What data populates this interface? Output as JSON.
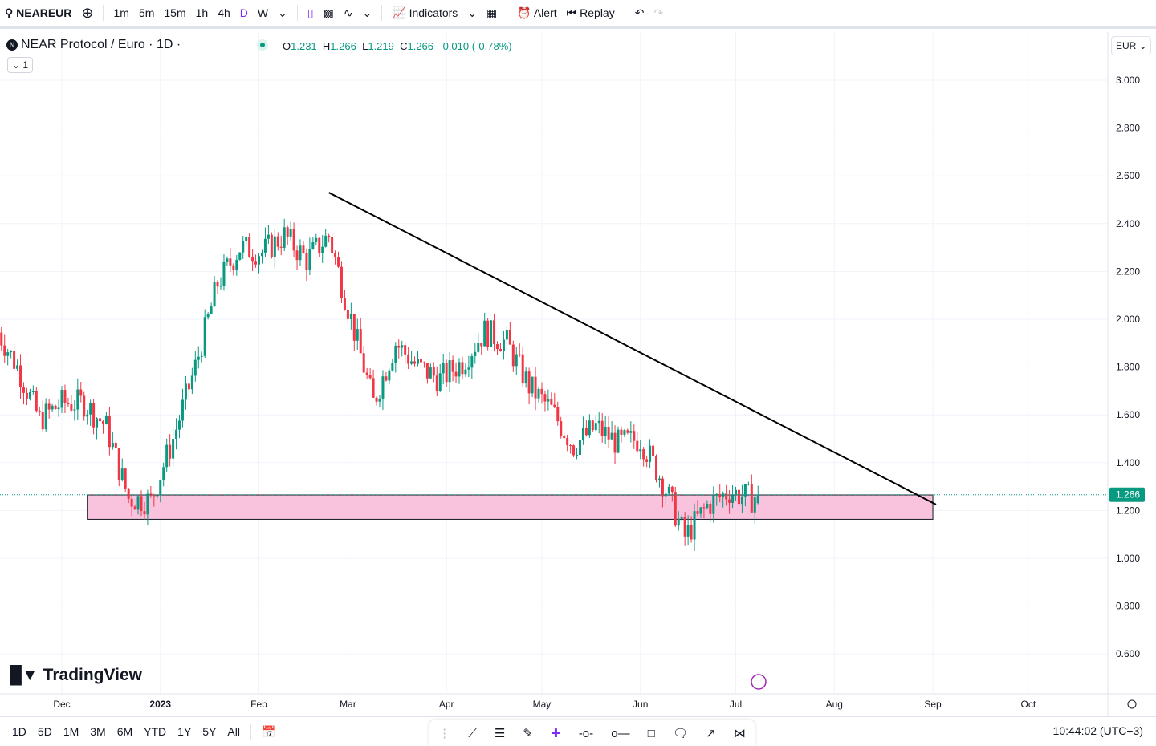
{
  "toolbar": {
    "symbol": "NEAREUR",
    "intervals": [
      "1m",
      "5m",
      "15m",
      "1h",
      "4h",
      "D",
      "W"
    ],
    "active_interval": "D",
    "indicators": "Indicators",
    "alert": "Alert",
    "replay": "Replay"
  },
  "legend": {
    "title": "NEAR Protocol / Euro · 1D ·",
    "o_label": "O",
    "o": "1.231",
    "h_label": "H",
    "h": "1.266",
    "l_label": "L",
    "l": "1.219",
    "c_label": "C",
    "c": "1.266",
    "change": "-0.010 (-0.78%)",
    "collapse": "1"
  },
  "currency": "EUR",
  "brand": "TradingView",
  "colors": {
    "up": "#089981",
    "down": "#f23645",
    "accent": "#2962ff",
    "zone": "#f8bbd9",
    "active": "#7b2cf5"
  },
  "chart_data": {
    "type": "candlestick",
    "ylim": [
      0.5,
      3.2
    ],
    "y_ticks": [
      "3.000",
      "2.800",
      "2.600",
      "2.400",
      "2.200",
      "2.000",
      "1.800",
      "1.600",
      "1.400",
      "1.200",
      "1.000",
      "0.800",
      "0.600"
    ],
    "x_ticks": [
      {
        "label": "Dec",
        "date": "2022-12-01"
      },
      {
        "label": "2023",
        "date": "2023-01-01"
      },
      {
        "label": "Feb",
        "date": "2023-02-01"
      },
      {
        "label": "Mar",
        "date": "2023-03-01"
      },
      {
        "label": "Apr",
        "date": "2023-04-01"
      },
      {
        "label": "May",
        "date": "2023-05-01"
      },
      {
        "label": "Jun",
        "date": "2023-06-01"
      },
      {
        "label": "Jul",
        "date": "2023-07-01"
      },
      {
        "label": "Aug",
        "date": "2023-08-01"
      },
      {
        "label": "Sep",
        "date": "2023-09-01"
      },
      {
        "label": "Oct",
        "date": "2023-10-01"
      }
    ],
    "closes": [
      [
        "2022-11-10",
        1.97
      ],
      [
        "2022-11-17",
        1.8
      ],
      [
        "2022-11-24",
        1.58
      ],
      [
        "2022-12-01",
        1.65
      ],
      [
        "2022-12-08",
        1.65
      ],
      [
        "2022-12-15",
        1.55
      ],
      [
        "2022-12-22",
        1.25
      ],
      [
        "2022-12-29",
        1.24
      ],
      [
        "2023-01-05",
        1.5
      ],
      [
        "2023-01-12",
        1.8
      ],
      [
        "2023-01-19",
        2.15
      ],
      [
        "2023-01-26",
        2.3
      ],
      [
        "2023-02-02",
        2.28
      ],
      [
        "2023-02-09",
        2.35
      ],
      [
        "2023-02-16",
        2.25
      ],
      [
        "2023-02-23",
        2.35
      ],
      [
        "2023-03-02",
        2.0
      ],
      [
        "2023-03-09",
        1.65
      ],
      [
        "2023-03-16",
        1.9
      ],
      [
        "2023-03-23",
        1.8
      ],
      [
        "2023-03-30",
        1.75
      ],
      [
        "2023-04-06",
        1.82
      ],
      [
        "2023-04-13",
        1.95
      ],
      [
        "2023-04-20",
        1.9
      ],
      [
        "2023-04-27",
        1.72
      ],
      [
        "2023-05-04",
        1.62
      ],
      [
        "2023-05-11",
        1.47
      ],
      [
        "2023-05-18",
        1.55
      ],
      [
        "2023-05-25",
        1.48
      ],
      [
        "2023-06-01",
        1.5
      ],
      [
        "2023-06-08",
        1.32
      ],
      [
        "2023-06-15",
        1.09
      ],
      [
        "2023-06-22",
        1.22
      ],
      [
        "2023-06-29",
        1.28
      ],
      [
        "2023-07-06",
        1.25
      ],
      [
        "2023-07-08",
        1.266
      ]
    ],
    "last_price": "1.266",
    "trendline": [
      [
        "2023-02-23",
        2.53
      ],
      [
        "2023-09-02",
        1.225
      ]
    ],
    "zone": {
      "from": "2022-12-09",
      "to": "2023-09-01",
      "top": 1.265,
      "bottom": 1.163
    }
  },
  "bottom": {
    "ranges": [
      "1D",
      "5D",
      "1M",
      "3M",
      "6M",
      "YTD",
      "1Y",
      "5Y",
      "All"
    ],
    "time": "10:44:02 (UTC+3)"
  }
}
